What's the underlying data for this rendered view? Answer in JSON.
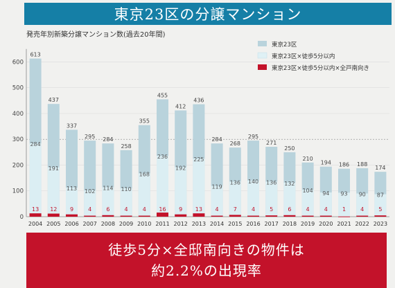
{
  "header": {
    "title": "東京23区の分譲マンション",
    "subtitle": "発売年別新築分譲マンション数(過去20年間)"
  },
  "footer": {
    "line1": "徒歩5分×全邸南向きの物件は",
    "line2": "約2.2%の出現率"
  },
  "colors": {
    "title_bg": "#157fa6",
    "series_total": "#b9d3dc",
    "series_walk5": "#dff1f5",
    "series_south": "#c3122a",
    "footer_bg": "#c3122a"
  },
  "chart_data": {
    "type": "bar",
    "title": "発売年別新築分譲マンション数(過去20年間)",
    "xlabel": "",
    "ylabel": "",
    "ylim": [
      0,
      650
    ],
    "yticks": [
      0,
      100,
      200,
      300,
      400,
      500,
      600
    ],
    "grid": true,
    "legend_position": "top-right",
    "categories": [
      "2004",
      "2005",
      "2006",
      "2007",
      "2008",
      "2009",
      "2010",
      "2011",
      "2012",
      "2013",
      "2014",
      "2015",
      "2016",
      "2017",
      "2018",
      "2019",
      "2020",
      "2021",
      "2022",
      "2023"
    ],
    "series": [
      {
        "name": "東京23区",
        "values": [
          613,
          437,
          337,
          295,
          284,
          258,
          355,
          455,
          412,
          436,
          284,
          268,
          295,
          271,
          250,
          210,
          194,
          186,
          188,
          174
        ]
      },
      {
        "name": "東京23区×徒歩5分以内",
        "values": [
          284,
          191,
          113,
          102,
          114,
          110,
          168,
          236,
          192,
          225,
          119,
          136,
          140,
          136,
          132,
          104,
          94,
          93,
          90,
          87
        ]
      },
      {
        "name": "東京23区×徒歩5分以内×全戸南向き",
        "values": [
          13,
          12,
          9,
          4,
          6,
          4,
          4,
          16,
          9,
          13,
          4,
          7,
          4,
          5,
          6,
          4,
          4,
          1,
          4,
          5
        ]
      }
    ]
  }
}
